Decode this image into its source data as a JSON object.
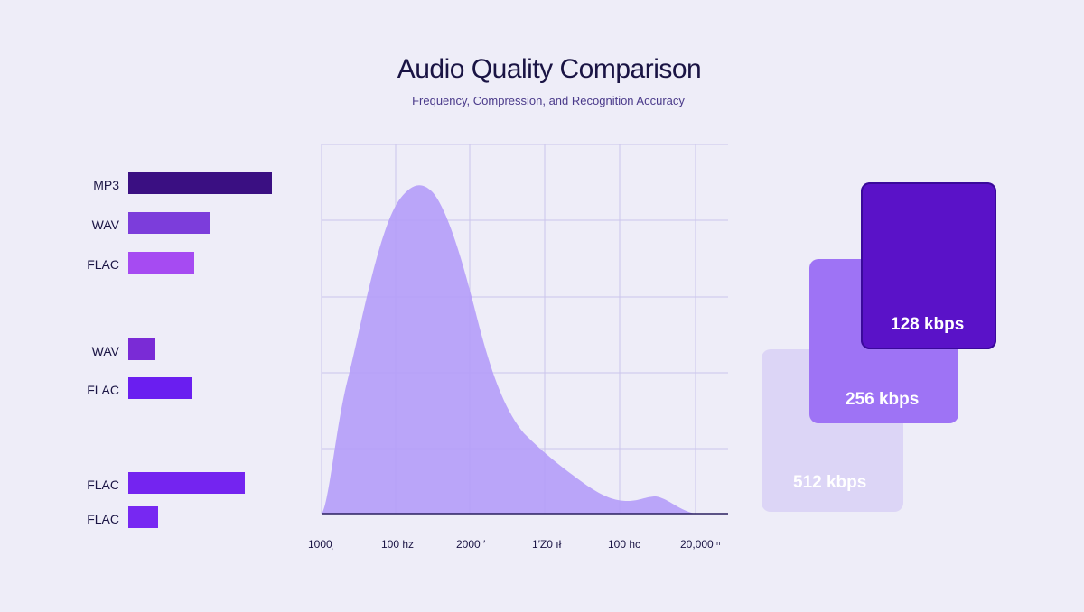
{
  "title": "Audio Quality Comparison",
  "subtitle": "Frequency, Compression, and Recognition Accuracy",
  "chart_data": [
    {
      "type": "bar",
      "orientation": "horizontal",
      "categories": [
        "MP3",
        "WAV",
        "FLAC",
        "WAV",
        "FLAC",
        "FLAC",
        "FLAC"
      ],
      "values": [
        100,
        57,
        46,
        19,
        44,
        81,
        21
      ],
      "colors": [
        "#3a0f82",
        "#7c3ddb",
        "#a64bf2",
        "#7a2bd6",
        "#6a1ef0",
        "#7424f0",
        "#7728f2"
      ]
    },
    {
      "type": "area",
      "x_tick_labels": [
        "1000̦",
        "100 hz",
        "2000 ′",
        "1′Z0 ıł",
        "100 hc",
        "20,000 ⁿ"
      ],
      "grid": true,
      "color": "#b49cf8"
    },
    {
      "type": "cards",
      "items": [
        {
          "label": "512 kbps",
          "color": "#dcd5f6"
        },
        {
          "label": "256 kbps",
          "color": "#9e73f5"
        },
        {
          "label": "128 kbps",
          "color": "#5a12c8"
        }
      ]
    }
  ]
}
